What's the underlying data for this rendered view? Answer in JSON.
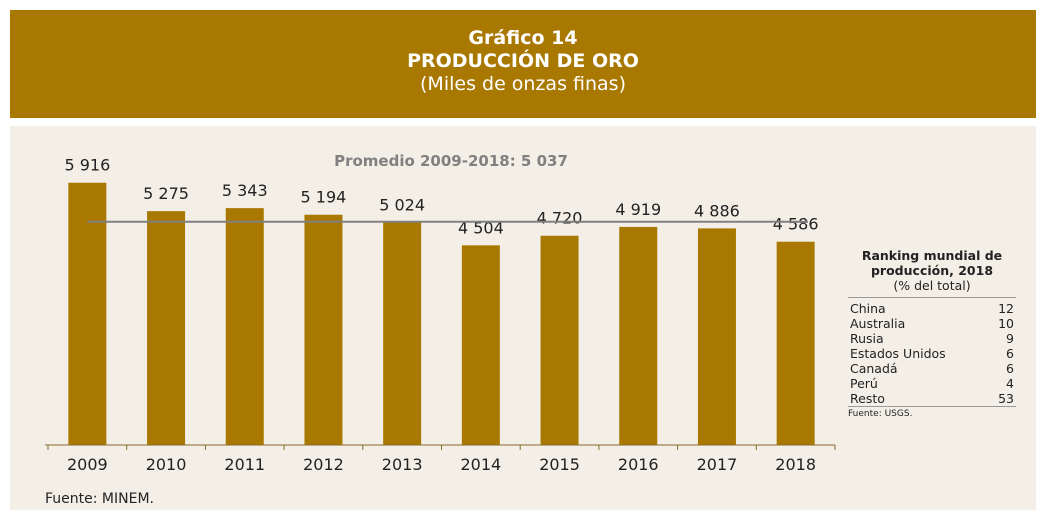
{
  "header": {
    "title": "Gráfico 14",
    "subtitle": "PRODUCCIÓN DE ORO",
    "units": "(Miles de onzas finas)"
  },
  "chart_data": {
    "type": "bar",
    "categories": [
      "2009",
      "2010",
      "2011",
      "2012",
      "2013",
      "2014",
      "2015",
      "2016",
      "2017",
      "2018"
    ],
    "values": [
      5916,
      5275,
      5343,
      5194,
      5024,
      4504,
      4720,
      4919,
      4886,
      4586
    ],
    "value_labels": [
      "5 916",
      "5 275",
      "5 343",
      "5 194",
      "5 024",
      "4 504",
      "4 720",
      "4 919",
      "4 886",
      "4 586"
    ],
    "color": "#a87800",
    "ylim": [
      0,
      6000
    ],
    "average": {
      "value": 5037,
      "label": "Promedio 2009-2018: 5 037",
      "color": "#808080"
    },
    "source": "Fuente: MINEM."
  },
  "ranking": {
    "title": "Ranking mundial de producción, 2018",
    "subtitle": "(% del total)",
    "rows": [
      [
        "China",
        "12"
      ],
      [
        "Australia",
        "10"
      ],
      [
        "Rusia",
        "9"
      ],
      [
        "Estados Unidos",
        "6"
      ],
      [
        "Canadá",
        "6"
      ],
      [
        "Perú",
        "4"
      ],
      [
        "Resto",
        "53"
      ]
    ],
    "source": "Fuente: USGS."
  }
}
